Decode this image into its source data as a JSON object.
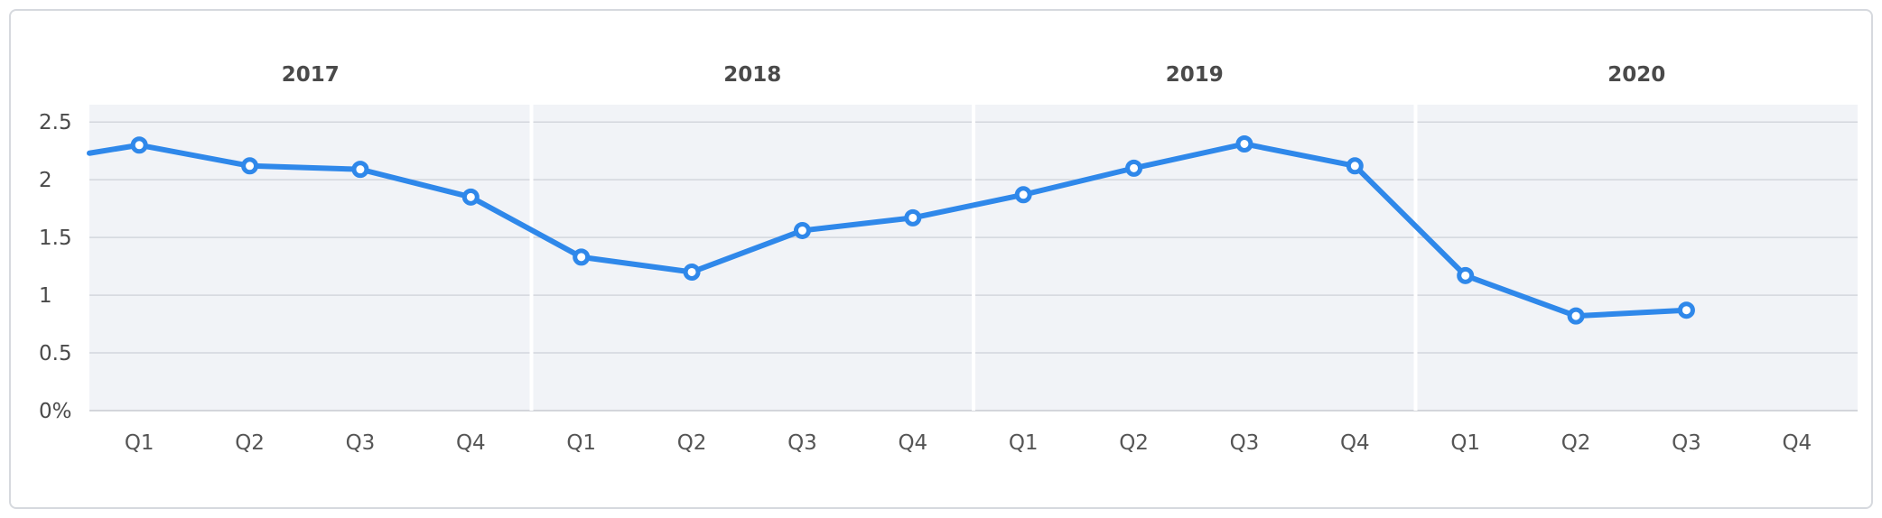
{
  "chart_data": {
    "type": "line",
    "groups": [
      "2017",
      "2018",
      "2019",
      "2020"
    ],
    "categories": [
      "Q1",
      "Q2",
      "Q3",
      "Q4"
    ],
    "series": [
      {
        "values": [
          [
            2.3,
            2.12,
            2.09,
            1.85
          ],
          [
            1.33,
            1.2,
            1.56,
            1.67
          ],
          [
            1.87,
            2.1,
            2.31,
            2.12
          ],
          [
            1.17,
            0.82,
            0.87,
            null
          ]
        ]
      }
    ],
    "y_ticks": [
      "0%",
      "0.5",
      "1",
      "1.5",
      "2",
      "2.5"
    ],
    "y_tick_values": [
      0,
      0.5,
      1,
      1.5,
      2,
      2.5
    ],
    "ylim": [
      0,
      2.65
    ],
    "entry_value": 2.23,
    "line_color": "#2f88ea",
    "plot_background": "#f1f3f7",
    "grid": true
  }
}
